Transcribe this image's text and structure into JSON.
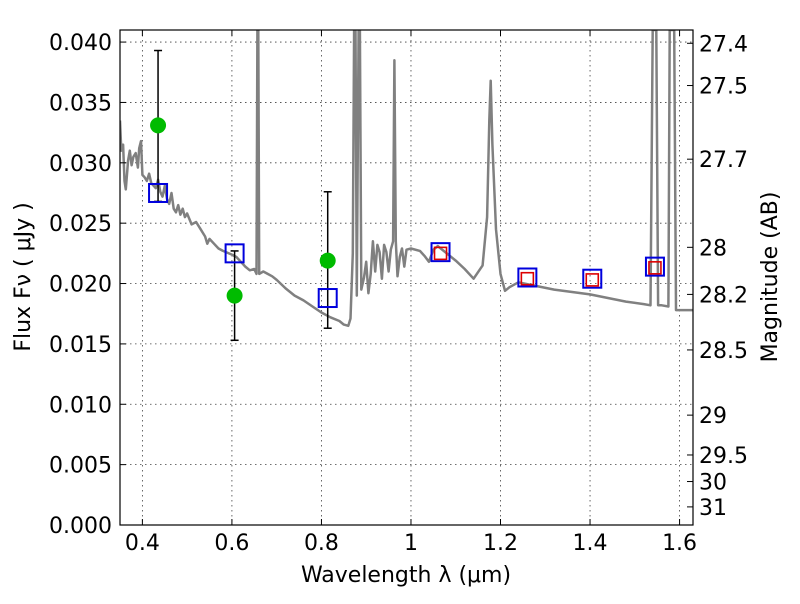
{
  "chart_data": {
    "type": "scatter",
    "xlabel": "Wavelength  λ (μm)",
    "ylabel": "Flux  Fν  ( μJy )",
    "ylabel_right": "Magnitude (AB)",
    "xlim": [
      0.35,
      1.63
    ],
    "ylim": [
      0.0,
      0.041
    ],
    "x_ticks": [
      0.4,
      0.6,
      0.8,
      1.0,
      1.2,
      1.4,
      1.6
    ],
    "x_tick_labels": [
      "0.4",
      "0.6",
      "0.8",
      "1",
      "1.2",
      "1.4",
      "1.6"
    ],
    "y_ticks": [
      0.0,
      0.005,
      0.01,
      0.015,
      0.02,
      0.025,
      0.03,
      0.035,
      0.04
    ],
    "y_tick_labels": [
      "0.000",
      "0.005",
      "0.010",
      "0.015",
      "0.020",
      "0.025",
      "0.030",
      "0.035",
      "0.040"
    ],
    "right_ticks": [
      {
        "label": "27.4",
        "flux": 0.0399
      },
      {
        "label": "27.5",
        "flux": 0.0364
      },
      {
        "label": "27.7",
        "flux": 0.0303
      },
      {
        "label": "28",
        "flux": 0.023
      },
      {
        "label": "28.2",
        "flux": 0.0191
      },
      {
        "label": "28.5",
        "flux": 0.0145
      },
      {
        "label": "29",
        "flux": 0.0091
      },
      {
        "label": "29.5",
        "flux": 0.0058
      },
      {
        "label": "30",
        "flux": 0.0036
      },
      {
        "label": "31",
        "flux": 0.0015
      }
    ],
    "grid": true,
    "series": [
      {
        "kind": "line",
        "color": "#808080",
        "points": [
          [
            0.35,
            0.0335
          ],
          [
            0.353,
            0.031
          ],
          [
            0.357,
            0.0315
          ],
          [
            0.36,
            0.0285
          ],
          [
            0.363,
            0.0278
          ],
          [
            0.368,
            0.0302
          ],
          [
            0.372,
            0.031
          ],
          [
            0.376,
            0.0298
          ],
          [
            0.38,
            0.0305
          ],
          [
            0.385,
            0.0308
          ],
          [
            0.39,
            0.0296
          ],
          [
            0.393,
            0.0312
          ],
          [
            0.397,
            0.0318
          ],
          [
            0.4,
            0.029
          ],
          [
            0.405,
            0.0288
          ],
          [
            0.41,
            0.0285
          ],
          [
            0.415,
            0.0291
          ],
          [
            0.42,
            0.0283
          ],
          [
            0.425,
            0.0281
          ],
          [
            0.43,
            0.0279
          ],
          [
            0.435,
            0.0286
          ],
          [
            0.44,
            0.0276
          ],
          [
            0.445,
            0.0272
          ],
          [
            0.45,
            0.0281
          ],
          [
            0.455,
            0.027
          ],
          [
            0.46,
            0.0266
          ],
          [
            0.465,
            0.0275
          ],
          [
            0.47,
            0.0262
          ],
          [
            0.475,
            0.0259
          ],
          [
            0.48,
            0.0265
          ],
          [
            0.485,
            0.0257
          ],
          [
            0.49,
            0.0262
          ],
          [
            0.495,
            0.0255
          ],
          [
            0.5,
            0.0258
          ],
          [
            0.51,
            0.0249
          ],
          [
            0.52,
            0.0251
          ],
          [
            0.53,
            0.0245
          ],
          [
            0.54,
            0.0239
          ],
          [
            0.545,
            0.0233
          ],
          [
            0.55,
            0.0237
          ],
          [
            0.56,
            0.0233
          ],
          [
            0.57,
            0.0229
          ],
          [
            0.58,
            0.0227
          ],
          [
            0.6,
            0.0224
          ],
          [
            0.61,
            0.0222
          ],
          [
            0.62,
            0.0218
          ],
          [
            0.63,
            0.0214
          ],
          [
            0.64,
            0.0211
          ],
          [
            0.65,
            0.0212
          ],
          [
            0.655,
            0.0208
          ],
          [
            0.657,
            0.041
          ],
          [
            0.659,
            0.041
          ],
          [
            0.661,
            0.0208
          ],
          [
            0.67,
            0.021
          ],
          [
            0.68,
            0.0208
          ],
          [
            0.69,
            0.0206
          ],
          [
            0.7,
            0.0203
          ],
          [
            0.72,
            0.0196
          ],
          [
            0.74,
            0.019
          ],
          [
            0.76,
            0.0186
          ],
          [
            0.78,
            0.0181
          ],
          [
            0.8,
            0.0176
          ],
          [
            0.82,
            0.0172
          ],
          [
            0.84,
            0.0169
          ],
          [
            0.85,
            0.0166
          ],
          [
            0.86,
            0.0165
          ],
          [
            0.865,
            0.0171
          ],
          [
            0.87,
            0.0225
          ],
          [
            0.873,
            0.041
          ],
          [
            0.876,
            0.041
          ],
          [
            0.879,
            0.019
          ],
          [
            0.883,
            0.041
          ],
          [
            0.886,
            0.041
          ],
          [
            0.889,
            0.0195
          ],
          [
            0.895,
            0.0205
          ],
          [
            0.9,
            0.0218
          ],
          [
            0.905,
            0.0192
          ],
          [
            0.91,
            0.0208
          ],
          [
            0.915,
            0.0235
          ],
          [
            0.92,
            0.021
          ],
          [
            0.925,
            0.0232
          ],
          [
            0.93,
            0.0226
          ],
          [
            0.935,
            0.0204
          ],
          [
            0.94,
            0.0232
          ],
          [
            0.945,
            0.0226
          ],
          [
            0.95,
            0.021
          ],
          [
            0.955,
            0.0228
          ],
          [
            0.96,
            0.0235
          ],
          [
            0.963,
            0.0385
          ],
          [
            0.966,
            0.0235
          ],
          [
            0.97,
            0.0206
          ],
          [
            0.975,
            0.0222
          ],
          [
            0.98,
            0.0229
          ],
          [
            0.985,
            0.0214
          ],
          [
            0.99,
            0.0228
          ],
          [
            1.0,
            0.0229
          ],
          [
            1.02,
            0.0227
          ],
          [
            1.03,
            0.0223
          ],
          [
            1.04,
            0.0218
          ],
          [
            1.05,
            0.0228
          ],
          [
            1.06,
            0.0231
          ],
          [
            1.08,
            0.0225
          ],
          [
            1.1,
            0.0219
          ],
          [
            1.12,
            0.0212
          ],
          [
            1.14,
            0.0204
          ],
          [
            1.16,
            0.0215
          ],
          [
            1.17,
            0.0255
          ],
          [
            1.175,
            0.0335
          ],
          [
            1.178,
            0.0368
          ],
          [
            1.182,
            0.0315
          ],
          [
            1.19,
            0.0245
          ],
          [
            1.2,
            0.0208
          ],
          [
            1.21,
            0.0194
          ],
          [
            1.22,
            0.0197
          ],
          [
            1.24,
            0.0201
          ],
          [
            1.28,
            0.0198
          ],
          [
            1.32,
            0.0195
          ],
          [
            1.36,
            0.0193
          ],
          [
            1.4,
            0.0191
          ],
          [
            1.44,
            0.0188
          ],
          [
            1.48,
            0.0185
          ],
          [
            1.52,
            0.0183
          ],
          [
            1.535,
            0.0182
          ],
          [
            1.54,
            0.041
          ],
          [
            1.548,
            0.041
          ],
          [
            1.552,
            0.0182
          ],
          [
            1.56,
            0.0182
          ],
          [
            1.575,
            0.0181
          ],
          [
            1.578,
            0.041
          ],
          [
            1.588,
            0.041
          ],
          [
            1.592,
            0.0178
          ],
          [
            1.61,
            0.0178
          ],
          [
            1.63,
            0.0178
          ]
        ]
      },
      {
        "kind": "error_points",
        "color": "#00bb00",
        "points": [
          {
            "x": 0.435,
            "y": 0.0331,
            "low": 0.0268,
            "high": 0.0393
          },
          {
            "x": 0.606,
            "y": 0.019,
            "low": 0.0153,
            "high": 0.0227
          },
          {
            "x": 0.814,
            "y": 0.0219,
            "low": 0.0163,
            "high": 0.0276
          }
        ]
      },
      {
        "kind": "square_markers",
        "color": "#0000dd",
        "points": [
          [
            0.435,
            0.0275
          ],
          [
            0.606,
            0.0225
          ],
          [
            0.814,
            0.0188
          ],
          [
            1.066,
            0.0226
          ],
          [
            1.26,
            0.0205
          ],
          [
            1.405,
            0.0204
          ],
          [
            1.545,
            0.0214
          ]
        ]
      },
      {
        "kind": "square_markers",
        "color": "#dd0000",
        "points": [
          [
            1.066,
            0.0225
          ],
          [
            1.26,
            0.0204
          ],
          [
            1.405,
            0.0203
          ],
          [
            1.545,
            0.0213
          ]
        ]
      }
    ]
  }
}
